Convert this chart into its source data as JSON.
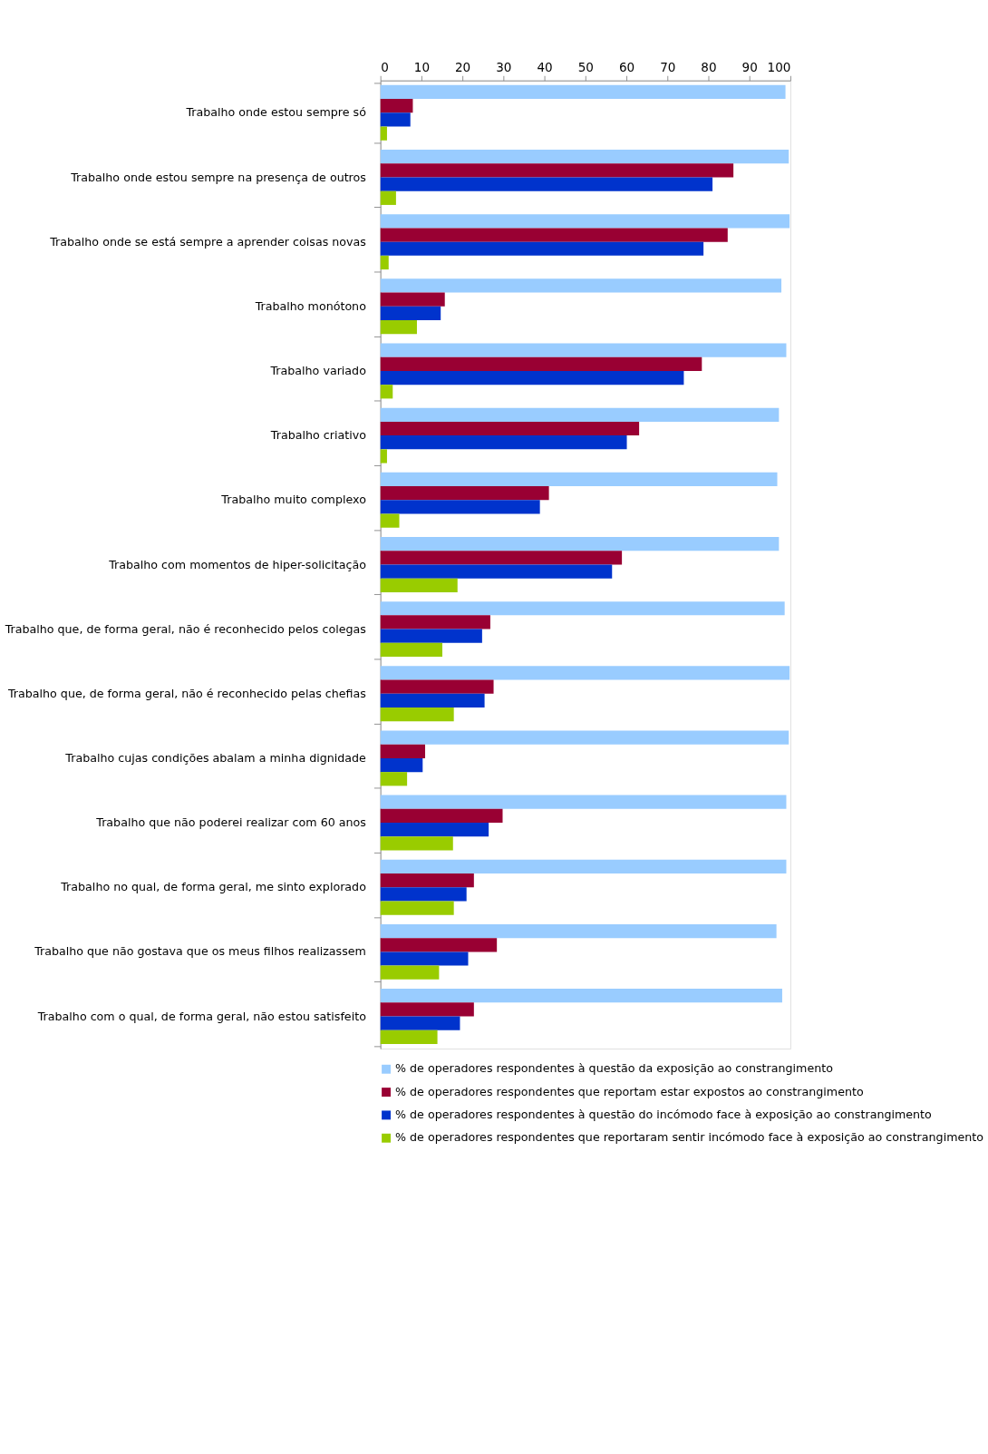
{
  "chart_data": {
    "type": "bar",
    "orientation": "horizontal",
    "categories": [
      "Trabalho onde estou sempre só",
      "Trabalho onde estou sempre na presença de outros",
      "Trabalho onde se está sempre a aprender coisas novas",
      "Trabalho monótono",
      "Trabalho variado",
      "Trabalho criativo",
      "Trabalho muito complexo",
      "Trabalho com momentos de hiper-solicitação",
      "Trabalho que, de forma geral, não é reconhecido pelos colegas",
      "Trabalho que, de forma geral, não é reconhecido pelas chefias",
      "Trabalho cujas condições abalam a minha dignidade",
      "Trabalho que não poderei realizar com 60 anos",
      "Trabalho no qual, de forma geral, me sinto explorado",
      "Trabalho que não gostava que os meus filhos realizassem",
      "Trabalho com o qual, de forma geral, não estou satisfeito"
    ],
    "series": [
      {
        "name": "% de operadores respondentes à questão da exposição ao constrangimento",
        "color": "#99ccff",
        "values": [
          98.8,
          99.6,
          99.8,
          97.8,
          99.0,
          97.2,
          96.8,
          97.2,
          98.6,
          99.8,
          99.6,
          99.0,
          99.0,
          96.6,
          98.0
        ]
      },
      {
        "name": "% de operadores respondentes que reportam estar expostos ao constrangimento",
        "color": "#990033",
        "values": [
          7.9,
          86.1,
          84.7,
          15.7,
          78.4,
          63.1,
          41.1,
          58.9,
          26.8,
          27.6,
          10.9,
          29.8,
          22.8,
          28.4,
          22.8
        ]
      },
      {
        "name": "% de operadores respondentes à questão do incómodo face à exposição ao constrangimento",
        "color": "#0033cc",
        "values": [
          7.3,
          81.0,
          78.8,
          14.7,
          74.0,
          60.1,
          38.9,
          56.5,
          24.8,
          25.4,
          10.3,
          26.4,
          21.0,
          21.4,
          19.4
        ]
      },
      {
        "name": "% de operadores respondentes que reportaram sentir incómodo face à exposição ao constrangimento",
        "color": "#99cc00",
        "values": [
          1.6,
          3.8,
          2.0,
          8.9,
          3.0,
          1.6,
          4.6,
          18.8,
          15.1,
          17.9,
          6.5,
          17.7,
          17.9,
          14.3,
          13.9
        ]
      }
    ],
    "xlim": [
      0,
      100
    ],
    "xticks": [
      0,
      10,
      20,
      30,
      40,
      50,
      60,
      70,
      80,
      90,
      100
    ],
    "grid": false,
    "legend": "bottom"
  }
}
